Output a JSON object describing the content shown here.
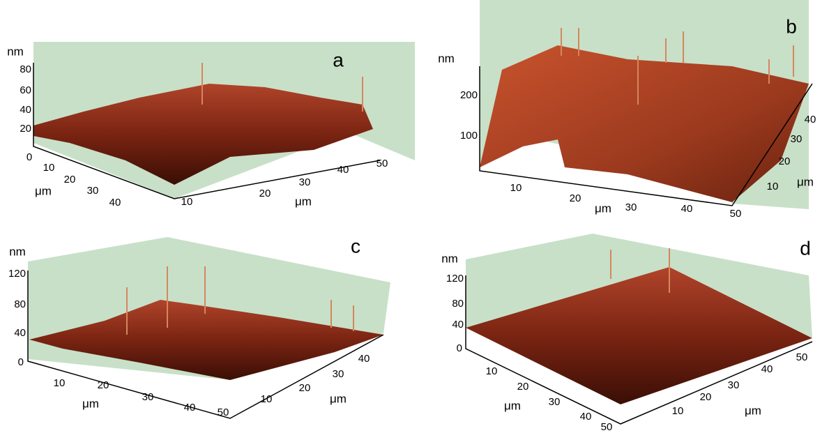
{
  "panels": [
    {
      "letter": "a",
      "z_unit": "nm",
      "z_ticks": [
        "80",
        "60",
        "40",
        "20"
      ],
      "x_label": "μm",
      "x_ticks": [
        "0",
        "10",
        "20",
        "30",
        "40"
      ],
      "y_label": "μm",
      "y_ticks": [
        "10",
        "20",
        "30",
        "40",
        "50"
      ]
    },
    {
      "letter": "b",
      "z_unit": "nm",
      "z_ticks": [
        "200",
        "100"
      ],
      "x_label": "μm",
      "x_ticks": [
        "10",
        "20",
        "30",
        "40",
        "50"
      ],
      "y_label": "μm",
      "y_ticks": [
        "10",
        "20",
        "30",
        "40"
      ]
    },
    {
      "letter": "c",
      "z_unit": "nm",
      "z_ticks": [
        "120",
        "80",
        "40",
        "0"
      ],
      "x_label": "μm",
      "x_ticks": [
        "10",
        "20",
        "30",
        "40",
        "50"
      ],
      "y_label": "μm",
      "y_ticks": [
        "10",
        "20",
        "30",
        "40"
      ]
    },
    {
      "letter": "d",
      "z_unit": "nm",
      "z_ticks": [
        "120",
        "80",
        "40",
        "0"
      ],
      "x_label": "μm",
      "x_ticks": [
        "10",
        "20",
        "30",
        "40",
        "50"
      ],
      "y_label": "μm",
      "y_ticks": [
        "10",
        "20",
        "30",
        "40",
        "50"
      ]
    }
  ]
}
